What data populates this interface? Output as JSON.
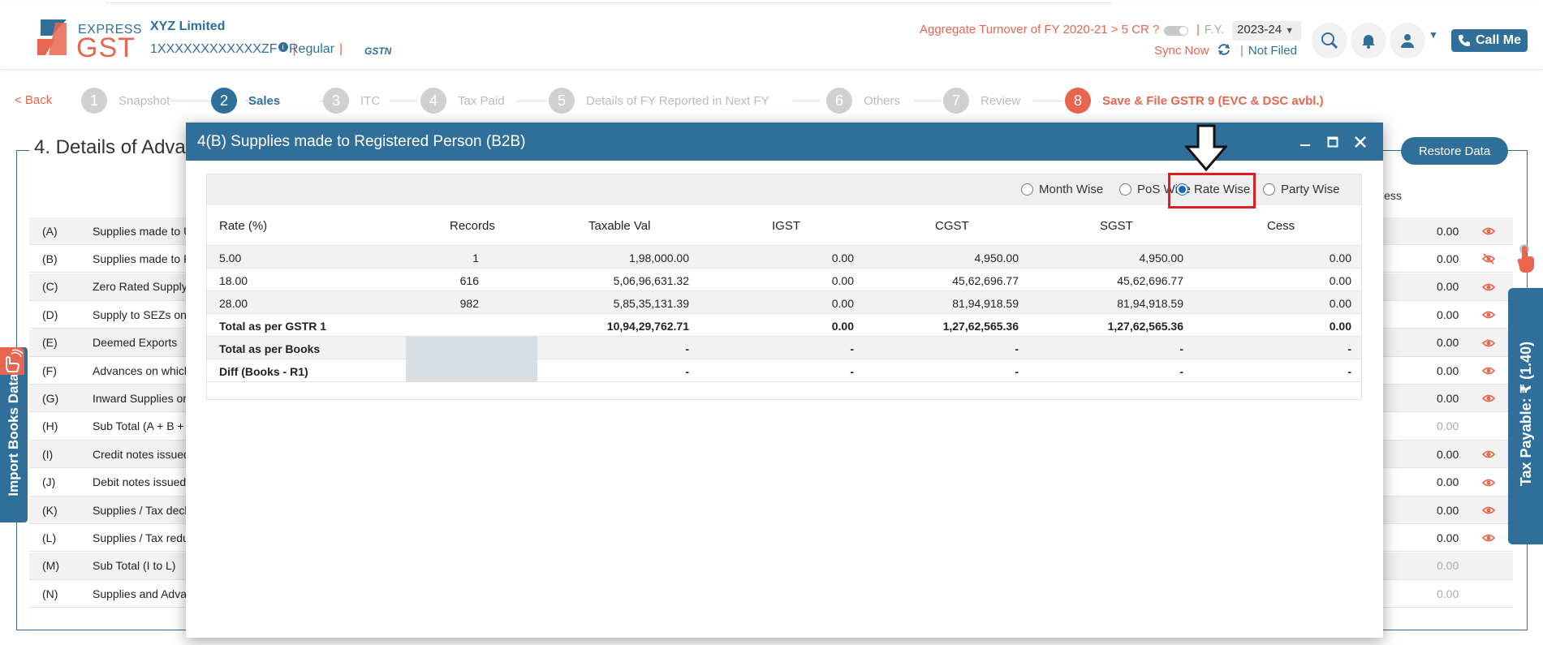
{
  "header": {
    "logo_top": "EXPRESS",
    "logo_bottom": "GST",
    "company": "XYZ Limited",
    "gstin": "1XXXXXXXXXXXXZF",
    "gstin_info": "i",
    "sep": "|",
    "registration_type": "Regular",
    "gstn_badge": "GSTN",
    "aggregate_turnover_question": "Aggregate Turnover of FY 2020-21 > 5 CR ?",
    "fy_label": "F.Y.",
    "fy_value": "2023-24",
    "sync_label": "Sync Now",
    "filing_status": "Not Filed",
    "call_label": "Call Me"
  },
  "stepper": {
    "back_label": "< Back",
    "steps": [
      {
        "num": "1",
        "label": "Snapshot"
      },
      {
        "num": "2",
        "label": "Sales"
      },
      {
        "num": "3",
        "label": "ITC"
      },
      {
        "num": "4",
        "label": "Tax Paid"
      },
      {
        "num": "5",
        "label": "Details of FY Reported in Next FY"
      },
      {
        "num": "6",
        "label": "Others"
      },
      {
        "num": "7",
        "label": "Review"
      },
      {
        "num": "8",
        "label": "Save & File GSTR 9 (EVC & DSC avbl.)"
      }
    ]
  },
  "section": {
    "title": "4. Details of Adva",
    "restore_label": "Restore Data",
    "cess_header": "Cess",
    "rows": [
      {
        "code": "(A)",
        "desc": "Supplies made to U",
        "value": "0.00"
      },
      {
        "code": "(B)",
        "desc": "Supplies made to R",
        "value": "0.00"
      },
      {
        "code": "(C)",
        "desc": "Zero Rated Supply",
        "value": "0.00"
      },
      {
        "code": "(D)",
        "desc": "Supply to SEZs on",
        "value": "0.00"
      },
      {
        "code": "(E)",
        "desc": "Deemed Exports",
        "value": "0.00"
      },
      {
        "code": "(F)",
        "desc": "Advances on which",
        "value": "0.00"
      },
      {
        "code": "(G)",
        "desc": "Inward Supplies or",
        "value": "0.00"
      },
      {
        "code": "(H)",
        "desc": "Sub Total (A + B +",
        "value": "0.00"
      },
      {
        "code": "(I)",
        "desc": "Credit notes issued",
        "value": "0.00"
      },
      {
        "code": "(J)",
        "desc": "Debit notes issued",
        "value": "0.00"
      },
      {
        "code": "(K)",
        "desc": "Supplies / Tax decl",
        "value": "0.00"
      },
      {
        "code": "(L)",
        "desc": "Supplies / Tax redu",
        "value": "0.00"
      },
      {
        "code": "(M)",
        "desc": "Sub Total (I to L)",
        "value": "0.00"
      },
      {
        "code": "(N)",
        "desc": "Supplies and Adva",
        "value": "0.00"
      }
    ]
  },
  "side_tabs": {
    "import_label": "Import Books Data",
    "tax_payable_label": "Tax Payable: ₹ (1.40)"
  },
  "modal": {
    "title": "4(B) Supplies made to Registered Person (B2B)",
    "view_options": [
      {
        "label": "Month Wise",
        "selected": false
      },
      {
        "label": "PoS Wise",
        "selected": false
      },
      {
        "label": "Rate Wise",
        "selected": true
      },
      {
        "label": "Party Wise",
        "selected": false
      }
    ],
    "columns": [
      "Rate (%)",
      "Records",
      "Taxable Val",
      "IGST",
      "CGST",
      "SGST",
      "Cess"
    ],
    "rows": [
      {
        "rate": "5.00",
        "records": "1",
        "taxable": "1,98,000.00",
        "igst": "0.00",
        "cgst": "4,950.00",
        "sgst": "4,950.00",
        "cess": "0.00"
      },
      {
        "rate": "18.00",
        "records": "616",
        "taxable": "5,06,96,631.32",
        "igst": "0.00",
        "cgst": "45,62,696.77",
        "sgst": "45,62,696.77",
        "cess": "0.00"
      },
      {
        "rate": "28.00",
        "records": "982",
        "taxable": "5,85,35,131.39",
        "igst": "0.00",
        "cgst": "81,94,918.59",
        "sgst": "81,94,918.59",
        "cess": "0.00"
      }
    ],
    "totals": [
      {
        "label": "Total as per GSTR 1",
        "taxable": "10,94,29,762.71",
        "igst": "0.00",
        "cgst": "1,27,62,565.36",
        "sgst": "1,27,62,565.36",
        "cess": "0.00"
      },
      {
        "label": "Total as per Books",
        "taxable": "-",
        "igst": "-",
        "cgst": "-",
        "sgst": "-",
        "cess": "-"
      },
      {
        "label": "Diff (Books - R1)",
        "taxable": "-",
        "igst": "-",
        "cgst": "-",
        "sgst": "-",
        "cess": "-"
      }
    ]
  },
  "colors": {
    "brand_blue": "#2f6f9a",
    "accent_orange": "#e8664f",
    "highlight_red": "#e01b24",
    "radio_blue": "#1565c0"
  }
}
